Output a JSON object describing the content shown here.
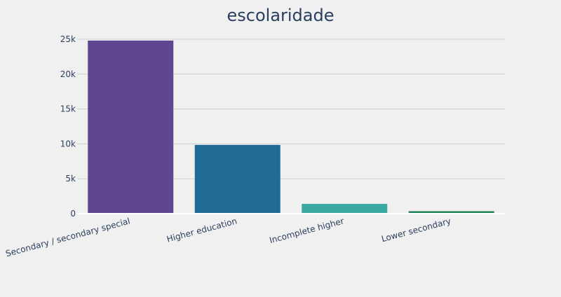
{
  "chart_data": {
    "type": "bar",
    "title": "escolaridade",
    "xlabel": "",
    "ylabel": "",
    "categories": [
      "Secondary / secondary special",
      "Higher education",
      "Incomplete higher",
      "Lower secondary"
    ],
    "values": [
      24800,
      9850,
      1400,
      350
    ],
    "colors": [
      "#5e4690",
      "#1f6b96",
      "#3ba9a2",
      "#1e8055"
    ],
    "ylim": [
      0,
      26000
    ],
    "yticks": [
      0,
      5000,
      10000,
      15000,
      20000,
      25000
    ],
    "ytick_labels": [
      "0",
      "5k",
      "10k",
      "15k",
      "20k",
      "25k"
    ],
    "grid": true,
    "legend": "none"
  }
}
